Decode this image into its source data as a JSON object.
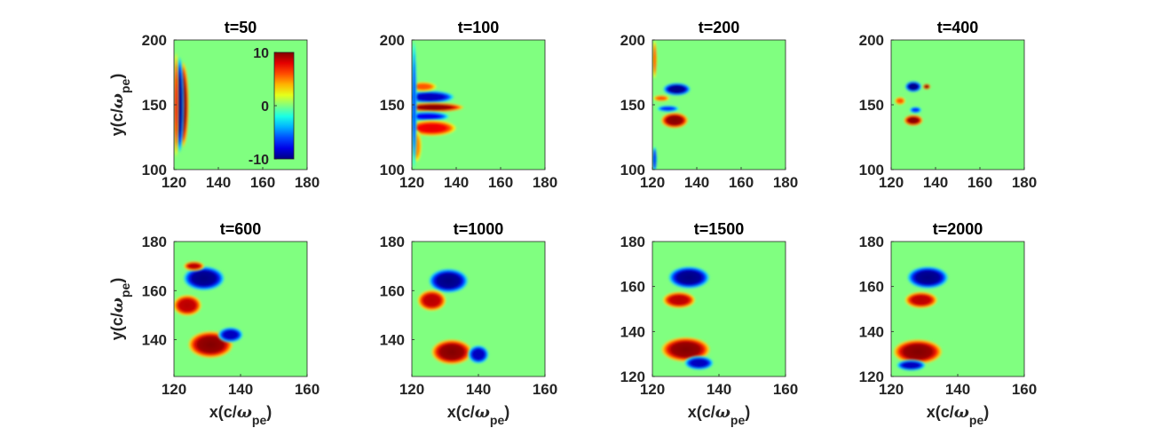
{
  "chart_data": {
    "type": "heatmap",
    "colormap": "jet",
    "background_color": "#80ff80",
    "colorbar": {
      "range": [
        -10,
        10
      ],
      "ticks": [
        "10",
        "0",
        "-10"
      ]
    },
    "xlabel_parts": {
      "main": "x(c/",
      "sym": "ω",
      "sub": "pe",
      "close": ")"
    },
    "ylabel_parts": {
      "main": "y(c/",
      "sym": "ω",
      "sub": "pe",
      "close": ")"
    },
    "rows": [
      {
        "xlim": [
          120,
          180
        ],
        "ylim": [
          100,
          200
        ],
        "xticks": [
          120,
          140,
          160,
          180
        ],
        "yticks": [
          100,
          150,
          200
        ],
        "panels": [
          {
            "title": "t=50",
            "blobs": [
              {
                "x": 124,
                "y": 150,
                "rx": 2.2,
                "ry": 27,
                "v": 10
              },
              {
                "x": 122.5,
                "y": 150,
                "rx": 1.6,
                "ry": 30,
                "v": -10
              },
              {
                "x": 121,
                "y": 150,
                "rx": 0.9,
                "ry": 33,
                "v": 8
              }
            ]
          },
          {
            "title": "t=100",
            "blobs": [
              {
                "x": 128,
                "y": 156,
                "rx": 9,
                "ry": 4,
                "v": -9
              },
              {
                "x": 130,
                "y": 148,
                "rx": 11,
                "ry": 3,
                "v": 10
              },
              {
                "x": 127,
                "y": 141,
                "rx": 8,
                "ry": 3,
                "v": -8
              },
              {
                "x": 129,
                "y": 132,
                "rx": 9,
                "ry": 5,
                "v": 8
              },
              {
                "x": 125,
                "y": 164,
                "rx": 5,
                "ry": 3,
                "v": 6
              },
              {
                "x": 122,
                "y": 118,
                "rx": 2,
                "ry": 10,
                "v": 5
              },
              {
                "x": 121,
                "y": 150,
                "rx": 1,
                "ry": 40,
                "v": -6
              }
            ]
          },
          {
            "title": "t=200",
            "blobs": [
              {
                "x": 131,
                "y": 162,
                "rx": 5,
                "ry": 4,
                "v": -10
              },
              {
                "x": 130,
                "y": 138,
                "rx": 5,
                "ry": 5,
                "v": 10
              },
              {
                "x": 127,
                "y": 147,
                "rx": 4,
                "ry": 2,
                "v": -7
              },
              {
                "x": 124,
                "y": 155,
                "rx": 3,
                "ry": 2,
                "v": 6
              },
              {
                "x": 121,
                "y": 185,
                "rx": 0.8,
                "ry": 12,
                "v": 6
              },
              {
                "x": 121,
                "y": 108,
                "rx": 0.8,
                "ry": 8,
                "v": -8
              }
            ]
          },
          {
            "title": "t=400",
            "blobs": [
              {
                "x": 130,
                "y": 164,
                "rx": 3,
                "ry": 3.5,
                "v": -10
              },
              {
                "x": 136,
                "y": 164,
                "rx": 1.4,
                "ry": 1.8,
                "v": 10
              },
              {
                "x": 130,
                "y": 138,
                "rx": 3.5,
                "ry": 3.5,
                "v": 10
              },
              {
                "x": 131,
                "y": 146,
                "rx": 2.2,
                "ry": 2,
                "v": -7
              },
              {
                "x": 124,
                "y": 153,
                "rx": 2,
                "ry": 2.5,
                "v": 6
              }
            ]
          }
        ]
      },
      {
        "xlim": [
          120,
          160
        ],
        "ylim": [
          125,
          180
        ],
        "xticks": [
          120,
          140,
          160
        ],
        "yticks": [
          140,
          160,
          180
        ],
        "ylim_low_row": [
          120,
          180
        ],
        "yticks_low_row": [
          120,
          140,
          160,
          180
        ],
        "panels": [
          {
            "title": "t=600",
            "ylim": [
              125,
              180
            ],
            "yticks": [
              140,
              160,
              180
            ],
            "blobs": [
              {
                "x": 129,
                "y": 165,
                "rx": 5,
                "ry": 4,
                "v": -10
              },
              {
                "x": 126,
                "y": 170,
                "rx": 2.5,
                "ry": 1.6,
                "v": 9
              },
              {
                "x": 124,
                "y": 154,
                "rx": 3.5,
                "ry": 3.5,
                "v": 9
              },
              {
                "x": 131,
                "y": 138,
                "rx": 5.5,
                "ry": 4.5,
                "v": 10
              },
              {
                "x": 137,
                "y": 142,
                "rx": 3,
                "ry": 2.5,
                "v": -9
              }
            ]
          },
          {
            "title": "t=1000",
            "ylim": [
              125,
              180
            ],
            "yticks": [
              140,
              160,
              180
            ],
            "blobs": [
              {
                "x": 131,
                "y": 164,
                "rx": 4.8,
                "ry": 4,
                "v": -10
              },
              {
                "x": 126,
                "y": 156,
                "rx": 3.5,
                "ry": 3.5,
                "v": 9
              },
              {
                "x": 132,
                "y": 135,
                "rx": 5,
                "ry": 4.2,
                "v": 10
              },
              {
                "x": 140,
                "y": 134,
                "rx": 2.5,
                "ry": 3,
                "v": -9
              }
            ]
          },
          {
            "title": "t=1500",
            "ylim": [
              120,
              180
            ],
            "yticks": [
              120,
              140,
              160,
              180
            ],
            "blobs": [
              {
                "x": 131,
                "y": 164,
                "rx": 5,
                "ry": 4,
                "v": -10
              },
              {
                "x": 128,
                "y": 154,
                "rx": 4,
                "ry": 3,
                "v": 9
              },
              {
                "x": 130,
                "y": 132,
                "rx": 6,
                "ry": 4.5,
                "v": 10
              },
              {
                "x": 134,
                "y": 126,
                "rx": 3.5,
                "ry": 2.5,
                "v": -9
              }
            ]
          },
          {
            "title": "t=2000",
            "ylim": [
              120,
              180
            ],
            "yticks": [
              120,
              140,
              160,
              180
            ],
            "blobs": [
              {
                "x": 131,
                "y": 164,
                "rx": 5,
                "ry": 4,
                "v": -10
              },
              {
                "x": 129,
                "y": 154,
                "rx": 4,
                "ry": 3,
                "v": 9
              },
              {
                "x": 128,
                "y": 131,
                "rx": 6,
                "ry": 4.5,
                "v": 10
              },
              {
                "x": 126,
                "y": 125,
                "rx": 3.5,
                "ry": 2,
                "v": -9
              }
            ]
          }
        ]
      }
    ]
  }
}
